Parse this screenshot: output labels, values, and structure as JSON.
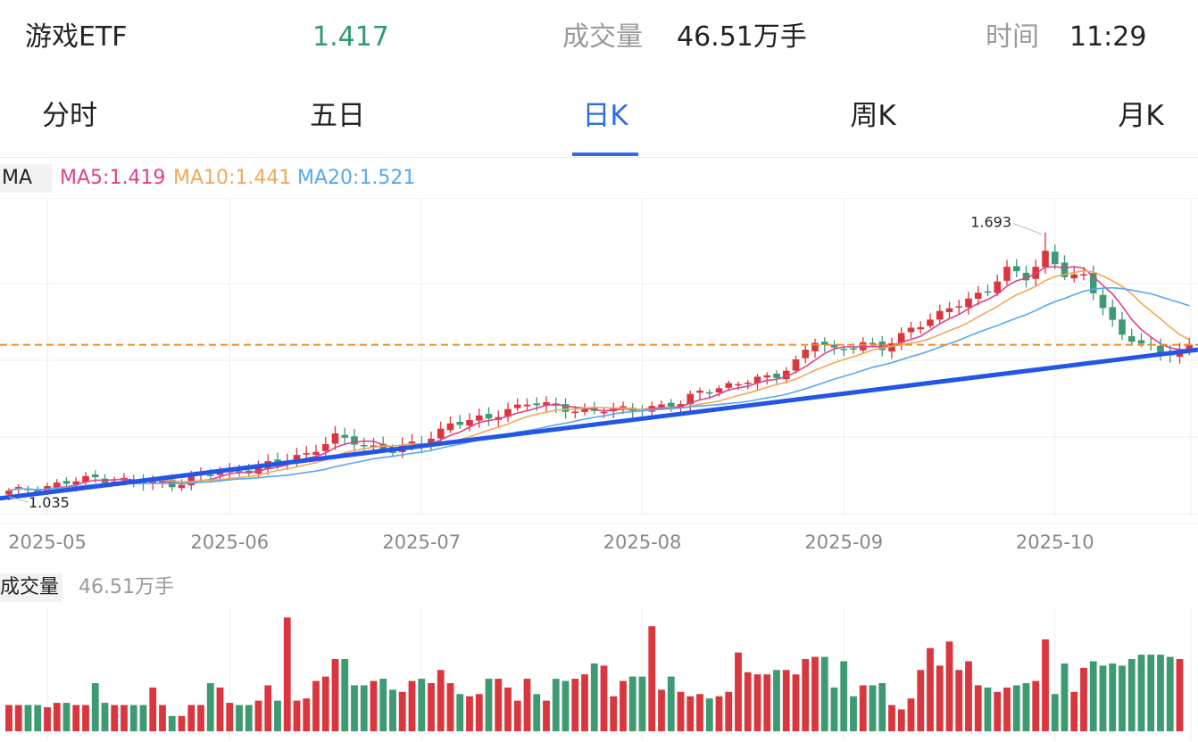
{
  "header": {
    "name": "游戏ETF",
    "price": "1.417",
    "volume_label": "成交量",
    "volume_value": "46.51万手",
    "time_label": "时间",
    "time_value": "11:29"
  },
  "tabs": [
    {
      "label": "分时",
      "active": false
    },
    {
      "label": "五日",
      "active": false
    },
    {
      "label": "日K",
      "active": true
    },
    {
      "label": "周K",
      "active": false
    },
    {
      "label": "月K",
      "active": false
    }
  ],
  "ma_legend": {
    "tag": "MA",
    "items": [
      {
        "label": "MA5:1.419",
        "color": "#e0408a"
      },
      {
        "label": "MA10:1.441",
        "color": "#f0a85a"
      },
      {
        "label": "MA20:1.521",
        "color": "#5aa6ee"
      }
    ]
  },
  "volume_legend": {
    "tag": "成交量",
    "value": "46.51万手"
  },
  "colors": {
    "up": "#d9363e",
    "down": "#3d9a72",
    "trendline": "#2356e8",
    "ref_line": "#f08a24",
    "grid": "#eeeeee"
  },
  "chart_data": {
    "type": "candlestick",
    "x_ticks": [
      "2025-05",
      "2025-06",
      "2025-07",
      "2025-08",
      "2025-09",
      "2025-10"
    ],
    "tick_day_index": [
      4,
      23,
      43,
      66,
      87,
      109
    ],
    "ylim": [
      1.0,
      1.76
    ],
    "high_label": "1.693",
    "high_day": 108,
    "high_value": 1.693,
    "low_label": "1.035",
    "low_day": 0,
    "low_value": 1.035,
    "reference_price": 1.417,
    "trendline": [
      [
        0,
        1.04
      ],
      [
        123,
        1.405
      ]
    ],
    "anchors": [
      [
        0,
        1.055
      ],
      [
        4,
        1.07
      ],
      [
        9,
        1.09
      ],
      [
        14,
        1.08
      ],
      [
        17,
        1.075
      ],
      [
        20,
        1.095
      ],
      [
        26,
        1.115
      ],
      [
        31,
        1.15
      ],
      [
        34,
        1.19
      ],
      [
        37,
        1.17
      ],
      [
        40,
        1.16
      ],
      [
        43,
        1.175
      ],
      [
        46,
        1.225
      ],
      [
        50,
        1.235
      ],
      [
        52,
        1.26
      ],
      [
        54,
        1.275
      ],
      [
        57,
        1.262
      ],
      [
        61,
        1.255
      ],
      [
        64,
        1.258
      ],
      [
        67,
        1.265
      ],
      [
        70,
        1.27
      ],
      [
        72,
        1.305
      ],
      [
        76,
        1.32
      ],
      [
        80,
        1.345
      ],
      [
        82,
        1.375
      ],
      [
        84,
        1.425
      ],
      [
        86,
        1.405
      ],
      [
        89,
        1.42
      ],
      [
        91,
        1.405
      ],
      [
        94,
        1.46
      ],
      [
        97,
        1.49
      ],
      [
        100,
        1.53
      ],
      [
        102,
        1.555
      ],
      [
        104,
        1.6
      ],
      [
        106,
        1.58
      ],
      [
        108,
        1.645
      ],
      [
        110,
        1.59
      ],
      [
        112,
        1.58
      ],
      [
        113,
        1.545
      ],
      [
        114,
        1.515
      ],
      [
        116,
        1.44
      ],
      [
        118,
        1.42
      ],
      [
        120,
        1.392
      ],
      [
        122,
        1.408
      ],
      [
        123,
        1.417
      ]
    ],
    "volume_values": [
      12,
      12,
      12,
      12,
      11,
      13,
      13,
      12,
      12,
      22,
      13,
      12,
      12,
      12,
      12,
      20,
      12,
      7,
      7,
      12,
      12,
      22,
      20,
      13,
      12,
      12,
      14,
      21,
      14,
      52,
      14,
      15,
      23,
      25,
      33,
      33,
      21,
      21,
      23,
      24,
      19,
      18,
      23,
      24,
      22,
      28,
      22,
      17,
      16,
      17,
      24,
      24,
      20,
      14,
      24,
      17,
      14,
      24,
      23,
      24,
      26,
      31,
      30,
      16,
      23,
      25,
      25,
      48,
      19,
      25,
      18,
      16,
      17,
      15,
      16,
      18,
      36,
      27,
      26,
      26,
      28,
      28,
      26,
      33,
      34,
      34,
      20,
      32,
      16,
      21,
      21,
      22,
      12,
      10,
      15,
      28,
      38,
      30,
      41,
      28,
      32,
      21,
      20,
      18,
      20,
      21,
      22,
      23,
      42,
      17,
      31,
      18,
      29,
      32,
      30,
      31,
      30,
      33,
      35,
      35,
      35,
      34,
      33
    ]
  }
}
